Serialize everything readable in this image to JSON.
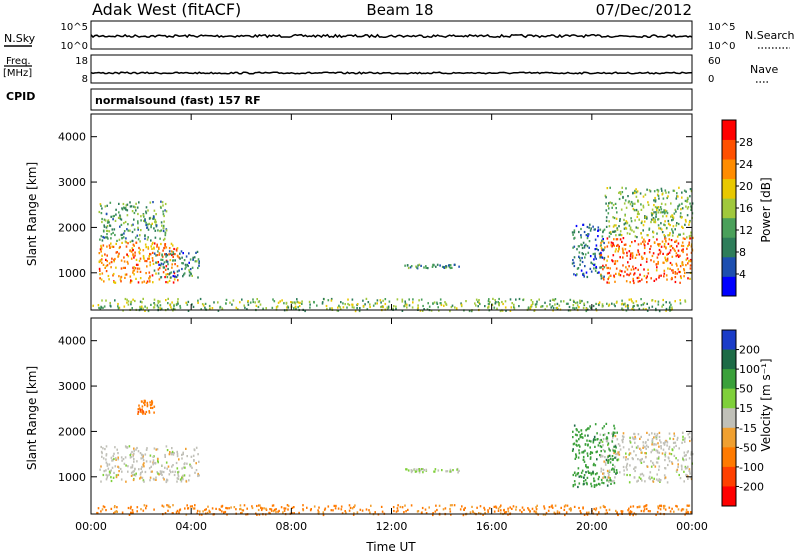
{
  "header": {
    "station": "Adak West (fitACF)",
    "beam": "Beam 18",
    "date": "07/Dec/2012"
  },
  "strips": {
    "nsky_label": "N.Sky",
    "nsky_ticks": [
      "10^5",
      "10^0"
    ],
    "nsearch_label": "N.Search",
    "nsearch_ticks": [
      "10^5",
      "10^0"
    ],
    "freq_label_top": "Freq.",
    "freq_label_bottom": "[MHz]",
    "freq_ticks": [
      "18",
      "8"
    ],
    "nave_label": "Nave",
    "nave_ticks": [
      "60",
      "0"
    ],
    "cpid_label": "CPID",
    "cpid_text": "normalsound (fast) 157 RF"
  },
  "chart_data": [
    {
      "type": "heatmap",
      "name": "power",
      "xlabel": "",
      "ylabel": "Slant Range [km]",
      "y_ticks": [
        "1000",
        "2000",
        "3000",
        "4000"
      ],
      "ylim": [
        180,
        4500
      ],
      "xlim_hours": [
        0,
        24
      ],
      "colorbar": {
        "label": "Power [dB]",
        "ticks": [
          "4",
          "8",
          "12",
          "16",
          "20",
          "24",
          "28"
        ],
        "range": [
          0,
          32
        ],
        "colors": [
          "#0000ff",
          "#1d4fb0",
          "#2e7d5a",
          "#4aa05a",
          "#a0c83c",
          "#e8c800",
          "#ff8c00",
          "#ff5000",
          "#ff0000"
        ]
      },
      "echo_regions": [
        {
          "t0": 0.3,
          "t1": 3.5,
          "r0": 800,
          "r1": 1700,
          "value": 24
        },
        {
          "t0": 20.3,
          "t1": 24.0,
          "r0": 800,
          "r1": 1800,
          "value": 26
        },
        {
          "t0": 2.5,
          "t1": 4.3,
          "r0": 900,
          "r1": 1500,
          "value": 9
        },
        {
          "t0": 0.3,
          "t1": 3.0,
          "r0": 1700,
          "r1": 2600,
          "value": 12
        },
        {
          "t0": 19.2,
          "t1": 20.5,
          "r0": 900,
          "r1": 2100,
          "value": 8
        },
        {
          "t0": 20.5,
          "t1": 24.0,
          "r0": 1800,
          "r1": 2900,
          "value": 14
        },
        {
          "t0": 12.5,
          "t1": 14.7,
          "r0": 1120,
          "r1": 1200,
          "value": 10
        },
        {
          "t0": 0.0,
          "t1": 24.0,
          "r0": 180,
          "r1": 450,
          "value": 14
        }
      ]
    },
    {
      "type": "heatmap",
      "name": "velocity",
      "xlabel": "Time UT",
      "ylabel": "Slant Range [km]",
      "y_ticks": [
        "1000",
        "2000",
        "3000",
        "4000"
      ],
      "x_ticks": [
        "00:00",
        "04:00",
        "08:00",
        "12:00",
        "16:00",
        "20:00",
        "00:00"
      ],
      "ylim": [
        180,
        4500
      ],
      "xlim_hours": [
        0,
        24
      ],
      "colorbar": {
        "label": "Velocity [m s⁻¹]",
        "ticks": [
          "200",
          "100",
          "50",
          "15",
          "-15",
          "-50",
          "-100",
          "-200"
        ],
        "colors": [
          "#1a3cc8",
          "#1d6b46",
          "#3aa03a",
          "#7fd03a",
          "#c0c0b8",
          "#f0a030",
          "#ff7a00",
          "#ff4000",
          "#ff0000"
        ]
      },
      "echo_regions": [
        {
          "t0": 0.3,
          "t1": 4.3,
          "r0": 900,
          "r1": 1700,
          "value": 0
        },
        {
          "t0": 20.3,
          "t1": 24.0,
          "r0": 900,
          "r1": 2000,
          "value": 0
        },
        {
          "t0": 19.2,
          "t1": 21.0,
          "r0": 800,
          "r1": 2200,
          "value": 60
        },
        {
          "t0": 1.8,
          "t1": 2.5,
          "r0": 2400,
          "r1": 2700,
          "value": -60
        },
        {
          "t0": 12.5,
          "t1": 14.7,
          "r0": 1120,
          "r1": 1200,
          "value": 10
        },
        {
          "t0": 0.0,
          "t1": 24.0,
          "r0": 180,
          "r1": 400,
          "value": -40
        }
      ]
    }
  ]
}
